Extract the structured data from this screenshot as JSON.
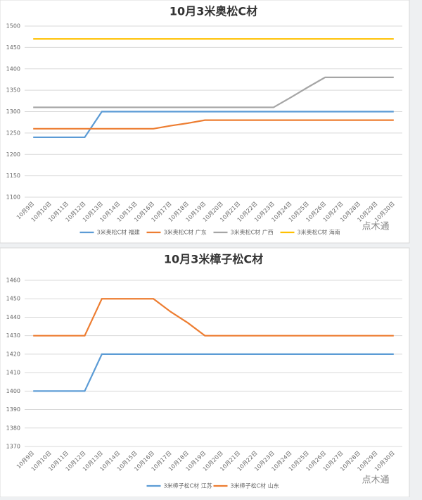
{
  "chart_data": [
    {
      "type": "line",
      "title": "10月3米奥松C材",
      "watermark": "点木通",
      "categories": [
        "10月9日",
        "10月10日",
        "10月11日",
        "10月12日",
        "10月13日",
        "10月14日",
        "10月15日",
        "10月16日",
        "10月17日",
        "10月18日",
        "10月19日",
        "10月20日",
        "10月21日",
        "10月22日",
        "10月23日",
        "10月24日",
        "10月25日",
        "10月26日",
        "10月27日",
        "10月28日",
        "10月29日",
        "10月30日"
      ],
      "series": [
        {
          "name": "3米奥松C材 福建",
          "color": "#5b9bd5",
          "values": [
            1240,
            1240,
            1240,
            1240,
            1300,
            1300,
            1300,
            1300,
            1300,
            1300,
            1300,
            1300,
            1300,
            1300,
            1300,
            1300,
            1300,
            1300,
            1300,
            1300,
            1300,
            1300
          ]
        },
        {
          "name": "3米奥松C材 广东",
          "color": "#ed7d31",
          "values": [
            1260,
            1260,
            1260,
            1260,
            1260,
            1260,
            1260,
            1260,
            1267,
            1273,
            1280,
            1280,
            1280,
            1280,
            1280,
            1280,
            1280,
            1280,
            1280,
            1280,
            1280,
            1280
          ]
        },
        {
          "name": "3米奥松C材 广西",
          "color": "#a5a5a5",
          "values": [
            1310,
            1310,
            1310,
            1310,
            1310,
            1310,
            1310,
            1310,
            1310,
            1310,
            1310,
            1310,
            1310,
            1310,
            1310,
            1333,
            1357,
            1380,
            1380,
            1380,
            1380,
            1380
          ]
        },
        {
          "name": "3米奥松C材 海南",
          "color": "#ffc000",
          "values": [
            1470,
            1470,
            1470,
            1470,
            1470,
            1470,
            1470,
            1470,
            1470,
            1470,
            1470,
            1470,
            1470,
            1470,
            1470,
            1470,
            1470,
            1470,
            1470,
            1470,
            1470,
            1470
          ]
        }
      ],
      "ylim": [
        1100,
        1500
      ],
      "yticks": [
        1100,
        1150,
        1200,
        1250,
        1300,
        1350,
        1400,
        1450,
        1500
      ],
      "grid": true
    },
    {
      "type": "line",
      "title": "10月3米樟子松C材",
      "watermark": "点木通",
      "categories": [
        "10月9日",
        "10月10日",
        "10月11日",
        "10月12日",
        "10月13日",
        "10月14日",
        "10月15日",
        "10月16日",
        "10月17日",
        "10月18日",
        "10月19日",
        "10月20日",
        "10月21日",
        "10月22日",
        "10月23日",
        "10月24日",
        "10月25日",
        "10月26日",
        "10月27日",
        "10月28日",
        "10月29日",
        "10月30日"
      ],
      "series": [
        {
          "name": "3米樟子松C材 江苏",
          "color": "#5b9bd5",
          "values": [
            1400,
            1400,
            1400,
            1400,
            1420,
            1420,
            1420,
            1420,
            1420,
            1420,
            1420,
            1420,
            1420,
            1420,
            1420,
            1420,
            1420,
            1420,
            1420,
            1420,
            1420,
            1420
          ]
        },
        {
          "name": "3米樟子松C材 山东",
          "color": "#ed7d31",
          "values": [
            1430,
            1430,
            1430,
            1430,
            1450,
            1450,
            1450,
            1450,
            1443,
            1437,
            1430,
            1430,
            1430,
            1430,
            1430,
            1430,
            1430,
            1430,
            1430,
            1430,
            1430,
            1430
          ]
        }
      ],
      "ylim": [
        1370,
        1460
      ],
      "yticks": [
        1370,
        1380,
        1390,
        1400,
        1410,
        1420,
        1430,
        1440,
        1450,
        1460
      ],
      "grid": true
    }
  ]
}
